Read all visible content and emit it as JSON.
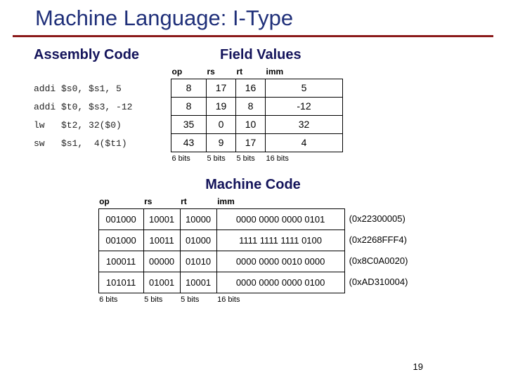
{
  "title": "Machine Language: I-Type",
  "pageNumber": "19",
  "hdrAssembly": "Assembly Code",
  "hdrFieldValues": "Field Values",
  "hdrMachineCode": "Machine Code",
  "cols": {
    "op": "op",
    "rs": "rs",
    "rt": "rt",
    "imm": "imm"
  },
  "bits": {
    "b6": "6 bits",
    "b5a": "5 bits",
    "b5b": "5 bits",
    "b16": "16 bits"
  },
  "asm": [
    "addi $s0, $s1, 5",
    "addi $t0, $s3, -12",
    "lw   $t2, 32($0)",
    "sw   $s1,  4($t1)"
  ],
  "fieldValues": {
    "colWidths": {
      "op": 50,
      "rs": 42,
      "rt": 42,
      "imm": 110
    },
    "rows": [
      {
        "op": "8",
        "rs": "17",
        "rt": "16",
        "imm": "5"
      },
      {
        "op": "8",
        "rs": "19",
        "rt": "8",
        "imm": "-12"
      },
      {
        "op": "35",
        "rs": "0",
        "rt": "10",
        "imm": "32"
      },
      {
        "op": "43",
        "rs": "9",
        "rt": "17",
        "imm": "4"
      }
    ]
  },
  "machineCode": {
    "colWidths": {
      "op": 64,
      "rs": 52,
      "rt": 52,
      "imm": 182
    },
    "rows": [
      {
        "op": "001000",
        "rs": "10001",
        "rt": "10000",
        "imm": "0000 0000 0000 0101",
        "hex": "(0x22300005)"
      },
      {
        "op": "001000",
        "rs": "10011",
        "rt": "01000",
        "imm": "1111 1111 1111 0100",
        "hex": "(0x2268FFF4)"
      },
      {
        "op": "100011",
        "rs": "00000",
        "rt": "01010",
        "imm": "0000 0000 0010 0000",
        "hex": "(0x8C0A0020)"
      },
      {
        "op": "101011",
        "rs": "01001",
        "rt": "10001",
        "imm": "0000 0000 0000 0100",
        "hex": "(0xAD310004)"
      }
    ]
  },
  "colors": {
    "titleColor": "#1f2f79",
    "ruleColor": "#8b1a1a",
    "sectHdrColor": "#14145b"
  }
}
